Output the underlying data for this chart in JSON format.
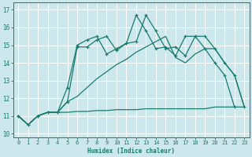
{
  "xlabel": "Humidex (Indice chaleur)",
  "bg_color": "#cce8ec",
  "grid_color": "#ffffff",
  "line_color": "#1a7a6e",
  "xlim": [
    -0.5,
    23.5
  ],
  "ylim": [
    9.8,
    17.4
  ],
  "xticks": [
    0,
    1,
    2,
    3,
    4,
    5,
    6,
    7,
    8,
    9,
    10,
    11,
    12,
    13,
    14,
    15,
    16,
    17,
    18,
    19,
    20,
    21,
    22,
    23
  ],
  "yticks": [
    10,
    11,
    12,
    13,
    14,
    15,
    16,
    17
  ],
  "line1_x": [
    0,
    1,
    2,
    3,
    4,
    5,
    6,
    7,
    8,
    9,
    10,
    11,
    12,
    13,
    14,
    15,
    16,
    17,
    18,
    19,
    20,
    21,
    22,
    23
  ],
  "line1_y": [
    11.0,
    10.5,
    11.0,
    11.2,
    11.2,
    11.8,
    14.9,
    14.9,
    15.3,
    15.5,
    14.7,
    15.1,
    15.2,
    16.7,
    15.8,
    14.8,
    14.9,
    14.4,
    15.5,
    15.5,
    14.8,
    14.0,
    13.3,
    11.5
  ],
  "line2_x": [
    0,
    1,
    2,
    3,
    4,
    5,
    6,
    7,
    8,
    9,
    10,
    11,
    12,
    13,
    14,
    15,
    16,
    17,
    18,
    19,
    20,
    21,
    22
  ],
  "line2_y": [
    11.0,
    10.5,
    11.0,
    11.2,
    11.2,
    12.6,
    15.0,
    15.3,
    15.5,
    14.5,
    14.8,
    15.1,
    16.7,
    15.8,
    14.8,
    14.9,
    14.4,
    15.5,
    15.5,
    14.8,
    14.0,
    13.3,
    11.5
  ],
  "line3_x": [
    0,
    1,
    2,
    3,
    4,
    5,
    6,
    7,
    8,
    9,
    10,
    11,
    12,
    13,
    14,
    15,
    16,
    17,
    18,
    19,
    20,
    21,
    22,
    23
  ],
  "line3_y": [
    11.0,
    10.5,
    11.0,
    11.2,
    11.2,
    11.2,
    11.25,
    11.25,
    11.3,
    11.3,
    11.35,
    11.35,
    11.35,
    11.4,
    11.4,
    11.4,
    11.4,
    11.4,
    11.4,
    11.4,
    11.5,
    11.5,
    11.5,
    11.5
  ],
  "line4_x": [
    0,
    1,
    2,
    3,
    4,
    5,
    6,
    7,
    8,
    9,
    10,
    11,
    12,
    13,
    14,
    15,
    16,
    17,
    18,
    19,
    20,
    21,
    22,
    23
  ],
  "line4_y": [
    11.0,
    10.5,
    11.0,
    11.2,
    11.2,
    11.8,
    12.1,
    12.6,
    13.1,
    13.5,
    13.9,
    14.2,
    14.6,
    14.9,
    15.2,
    15.5,
    14.3,
    14.0,
    14.5,
    14.8,
    14.8,
    14.0,
    13.3,
    11.5
  ]
}
